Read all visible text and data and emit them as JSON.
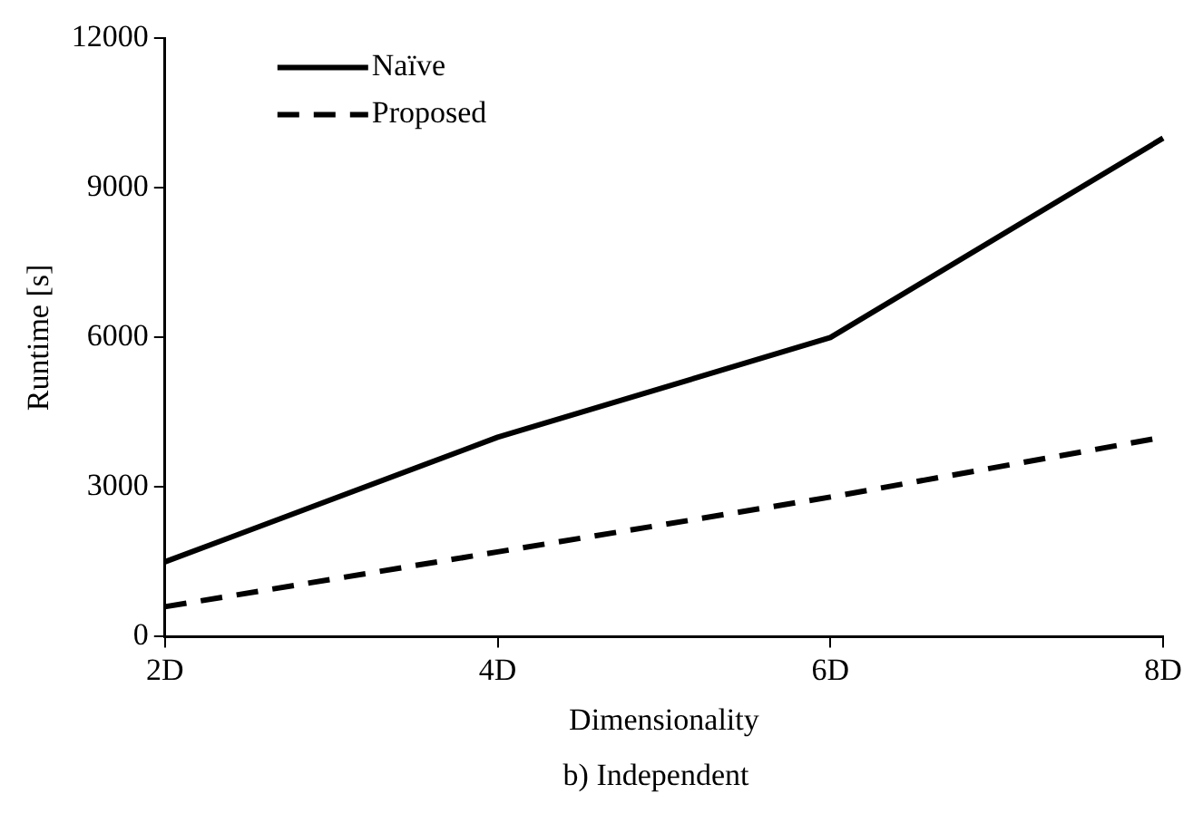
{
  "chart_data": {
    "type": "line",
    "xlabel": "Dimensionality",
    "ylabel": "Runtime [s]",
    "categories": [
      "2D",
      "4D",
      "6D",
      "8D"
    ],
    "series": [
      {
        "name": "Naïve",
        "color": "#000000",
        "values": [
          1500,
          4000,
          6000,
          10000
        ],
        "line_style": "solid"
      },
      {
        "name": "Proposed",
        "color": "#000000",
        "values": [
          600,
          1700,
          2800,
          4000
        ],
        "line_style": "dashed"
      }
    ],
    "ylim": [
      0,
      12000
    ],
    "yticks": [
      0,
      3000,
      6000,
      9000,
      12000
    ],
    "grid": false,
    "legend": "top left",
    "marker": "none",
    "annotations": [
      "b) Independent"
    ]
  }
}
